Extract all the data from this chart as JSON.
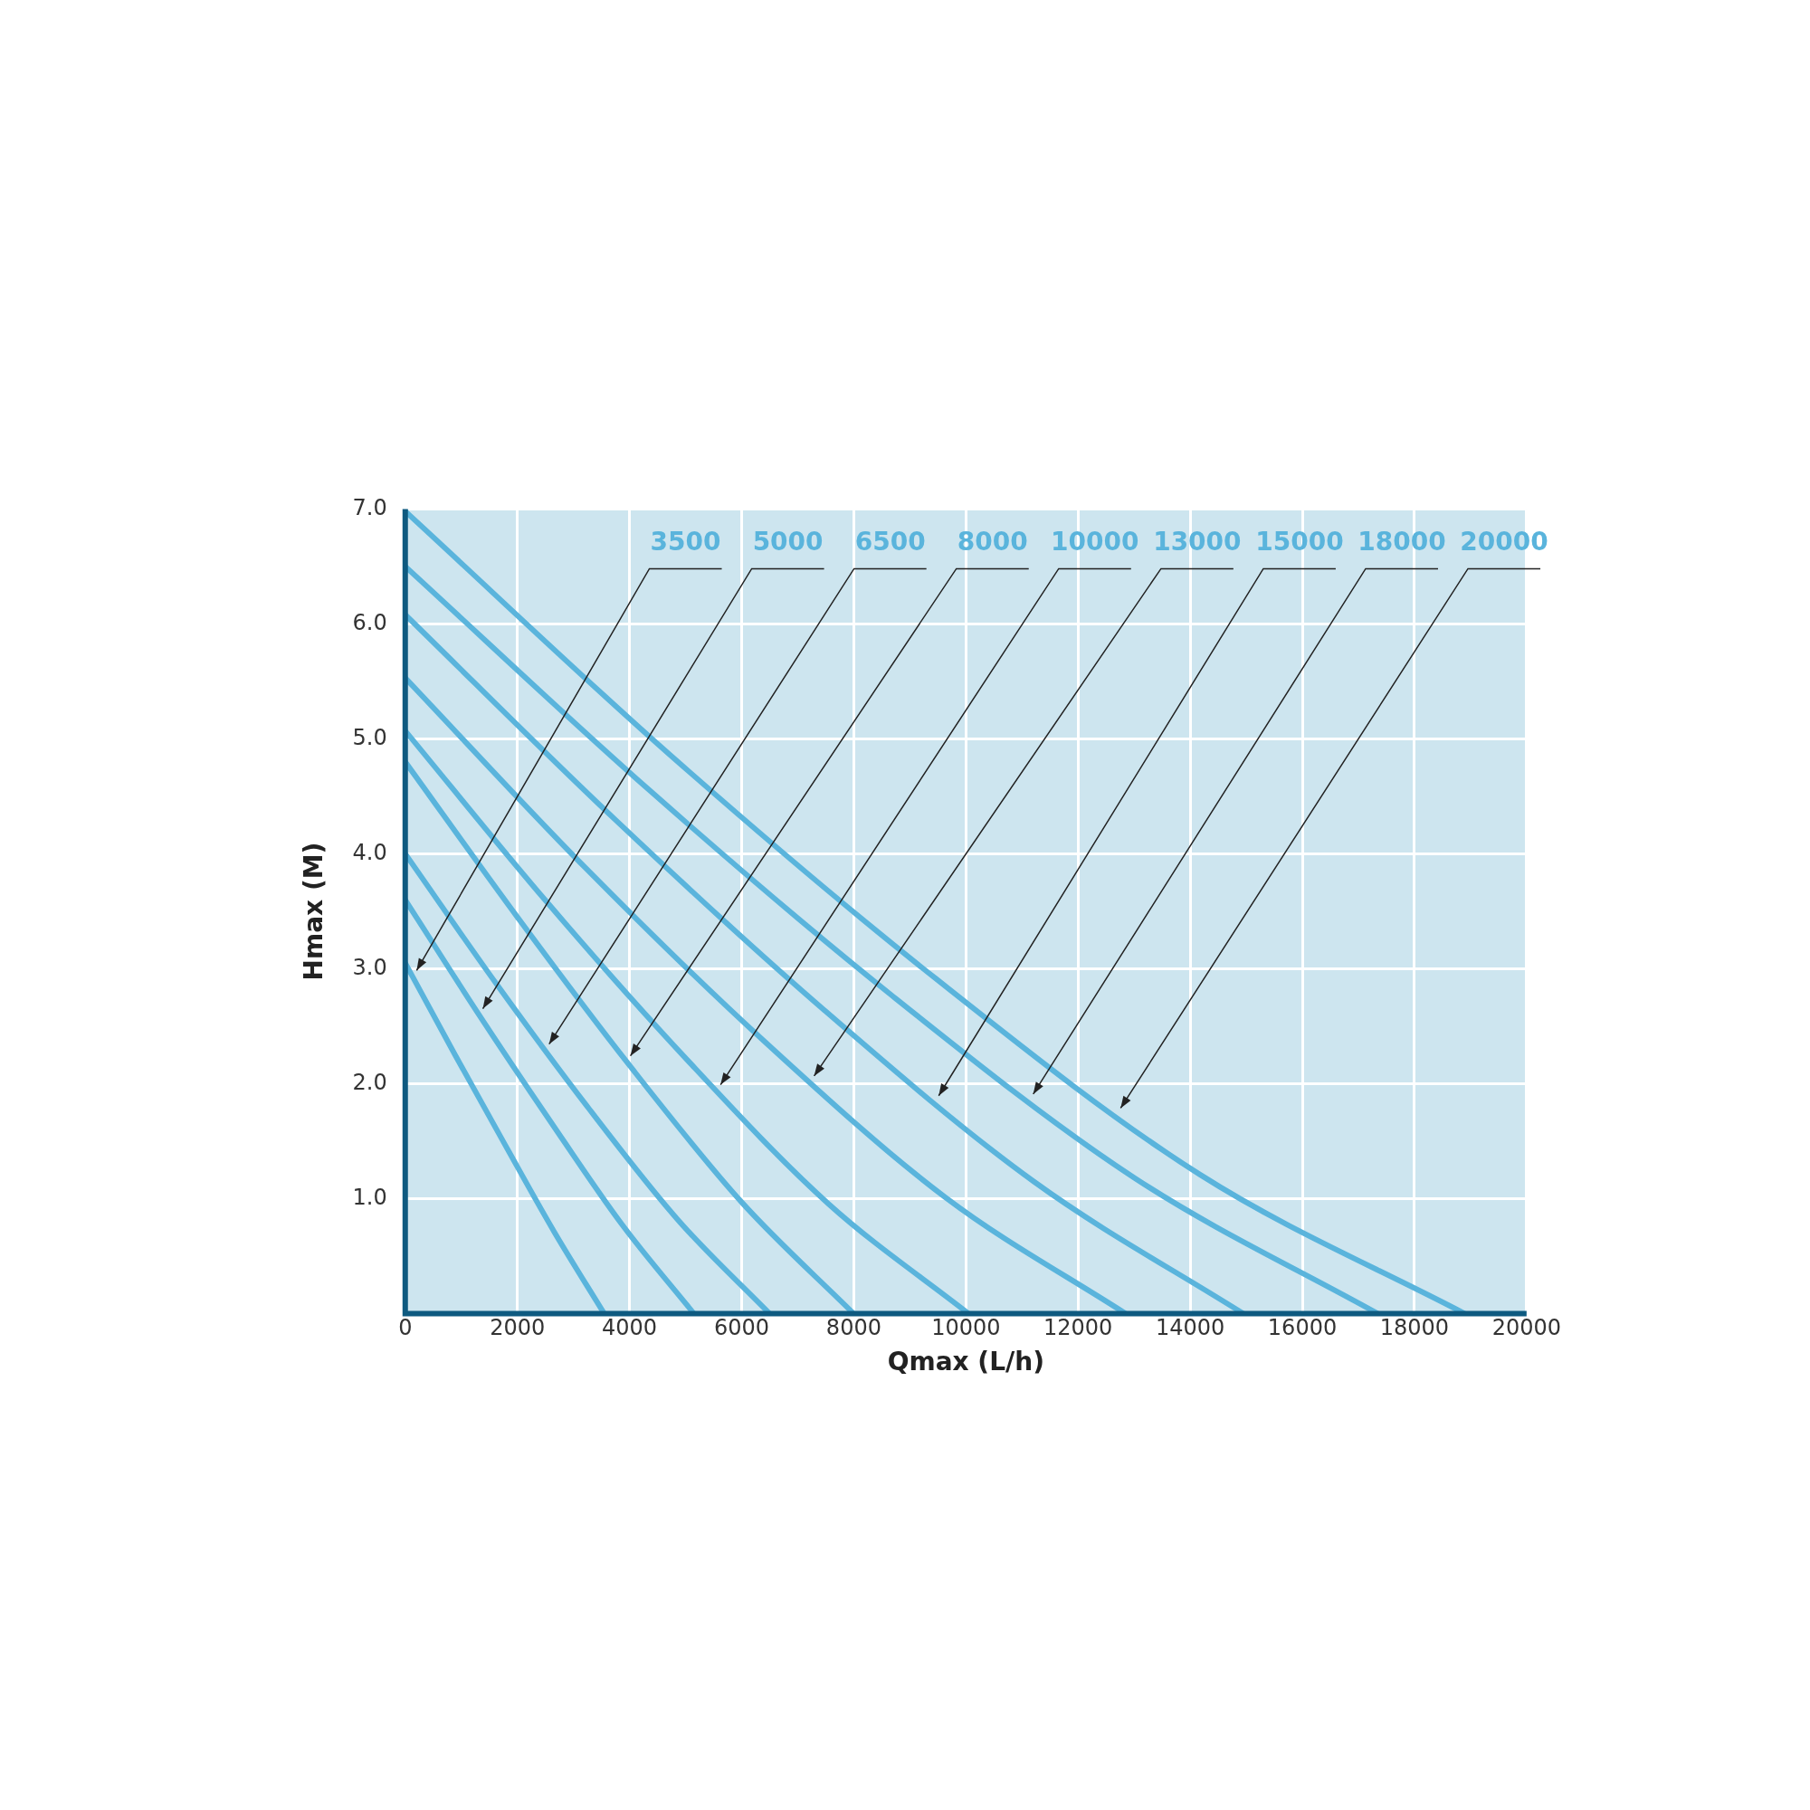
{
  "chart_data": {
    "type": "line",
    "xlabel": "Qmax (L/h)",
    "ylabel": "Hmax (M)",
    "xlim": [
      0,
      20000
    ],
    "ylim": [
      0,
      7
    ],
    "xticks": [
      0,
      2000,
      4000,
      6000,
      8000,
      10000,
      12000,
      14000,
      16000,
      18000,
      20000
    ],
    "yticks": [
      {
        "value": 1,
        "label": "1.0"
      },
      {
        "value": 2,
        "label": "2.0"
      },
      {
        "value": 3,
        "label": "3.0"
      },
      {
        "value": 4,
        "label": "4.0"
      },
      {
        "value": 5,
        "label": "5.0"
      },
      {
        "value": 6,
        "label": "6.0"
      },
      {
        "value": 7,
        "label": "7.0"
      }
    ],
    "grid": true,
    "marker": "none",
    "line_style": "solid",
    "series": [
      {
        "name": "3500",
        "color": "#5ab4dc",
        "x": [
          0,
          890,
          1780,
          2660,
          3550
        ],
        "values": [
          3.05,
          2.25,
          1.47,
          0.71,
          0
        ]
      },
      {
        "name": "5000",
        "color": "#5ab4dc",
        "x": [
          0,
          1290,
          2580,
          3860,
          5150
        ],
        "values": [
          3.6,
          2.62,
          1.68,
          0.78,
          0
        ]
      },
      {
        "name": "6500",
        "color": "#5ab4dc",
        "x": [
          0,
          1625,
          3250,
          4875,
          6500
        ],
        "values": [
          4.0,
          2.87,
          1.8,
          0.81,
          0
        ]
      },
      {
        "name": "8000",
        "color": "#5ab4dc",
        "x": [
          0,
          2000,
          4000,
          6000,
          8000
        ],
        "values": [
          4.8,
          3.45,
          2.16,
          0.97,
          0
        ]
      },
      {
        "name": "10000",
        "color": "#5ab4dc",
        "x": [
          0,
          2510,
          5025,
          7540,
          10050
        ],
        "values": [
          5.07,
          3.59,
          2.21,
          0.96,
          0
        ]
      },
      {
        "name": "13000",
        "color": "#5ab4dc",
        "x": [
          0,
          3210,
          6425,
          9640,
          12850
        ],
        "values": [
          5.53,
          3.88,
          2.36,
          1.01,
          0
        ]
      },
      {
        "name": "15000",
        "color": "#5ab4dc",
        "x": [
          0,
          3740,
          7475,
          11210,
          14950
        ],
        "values": [
          6.08,
          4.3,
          2.64,
          1.15,
          0
        ]
      },
      {
        "name": "18000",
        "color": "#5ab4dc",
        "x": [
          0,
          4340,
          8675,
          13010,
          17350
        ],
        "values": [
          6.5,
          4.56,
          2.77,
          1.18,
          0
        ]
      },
      {
        "name": "20000",
        "color": "#5ab4dc",
        "x": [
          0,
          4725,
          9450,
          14175,
          18900
        ],
        "values": [
          6.98,
          4.86,
          2.92,
          1.21,
          0
        ]
      }
    ]
  }
}
